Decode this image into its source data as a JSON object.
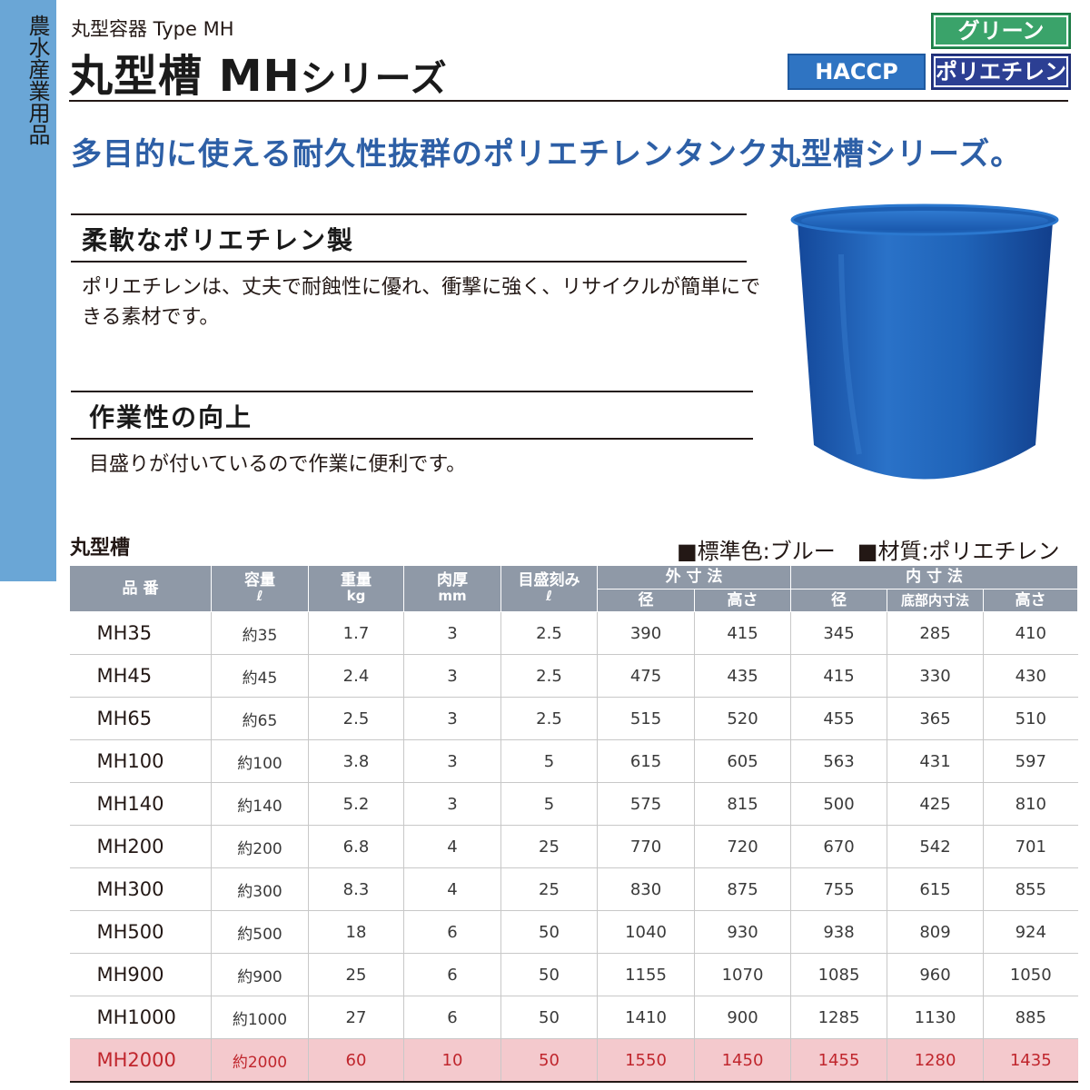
{
  "side_tab": {
    "label": "農水産業用品"
  },
  "header": {
    "subtitle": "丸型容器 Type MH",
    "title_main": "丸型槽 MH",
    "title_suffix": "シリーズ",
    "badges": {
      "green": "グリーン",
      "haccp": "HACCP",
      "polyethylene": "ポリエチレン"
    }
  },
  "headline": "多目的に使える耐久性抜群のポリエチレンタンク丸型槽シリーズ。",
  "features": [
    {
      "heading": "柔軟なポリエチレン製",
      "body_line1": "ポリエチレンは、丈夫で耐蝕性に優れ、衝撃に強く、リサイクルが簡単にで",
      "body_line2": "きる素材です。"
    },
    {
      "heading": "作業性の向上",
      "body_line1": "目盛りが付いているので作業に便利です。"
    }
  ],
  "product_image": {
    "icon": "blue-round-tank-image",
    "color": "#1f63b8"
  },
  "table_section": {
    "label": "丸型槽",
    "standard_color": "■標準色:ブルー",
    "material": "■材質:ポリエチレン"
  },
  "table": {
    "headers": {
      "part_no": "品 番",
      "capacity": "容量",
      "capacity_unit": "ℓ",
      "weight": "重量",
      "weight_unit": "kg",
      "thickness": "肉厚",
      "thickness_unit": "mm",
      "scale": "目盛刻み",
      "scale_unit": "ℓ",
      "outer": "外 寸 法",
      "outer_dia": "径",
      "outer_height": "高さ",
      "inner": "内 寸 法",
      "inner_dia": "径",
      "inner_bottom": "底部内寸法",
      "inner_height": "高さ"
    },
    "rows": [
      [
        "MH35",
        "約35",
        "1.7",
        "3",
        "2.5",
        "390",
        "415",
        "345",
        "285",
        "410"
      ],
      [
        "MH45",
        "約45",
        "2.4",
        "3",
        "2.5",
        "475",
        "435",
        "415",
        "330",
        "430"
      ],
      [
        "MH65",
        "約65",
        "2.5",
        "3",
        "2.5",
        "515",
        "520",
        "455",
        "365",
        "510"
      ],
      [
        "MH100",
        "約100",
        "3.8",
        "3",
        "5",
        "615",
        "605",
        "563",
        "431",
        "597"
      ],
      [
        "MH140",
        "約140",
        "5.2",
        "3",
        "5",
        "575",
        "815",
        "500",
        "425",
        "810"
      ],
      [
        "MH200",
        "約200",
        "6.8",
        "4",
        "25",
        "770",
        "720",
        "670",
        "542",
        "701"
      ],
      [
        "MH300",
        "約300",
        "8.3",
        "4",
        "25",
        "830",
        "875",
        "755",
        "615",
        "855"
      ],
      [
        "MH500",
        "約500",
        "18",
        "6",
        "50",
        "1040",
        "930",
        "938",
        "809",
        "924"
      ],
      [
        "MH900",
        "約900",
        "25",
        "6",
        "50",
        "1155",
        "1070",
        "1085",
        "960",
        "1050"
      ],
      [
        "MH1000",
        "約1000",
        "27",
        "6",
        "50",
        "1410",
        "900",
        "1285",
        "1130",
        "885"
      ],
      [
        "MH2000",
        "約2000",
        "60",
        "10",
        "50",
        "1550",
        "1450",
        "1455",
        "1280",
        "1435"
      ]
    ],
    "highlight_color": "#f4c9cd"
  }
}
